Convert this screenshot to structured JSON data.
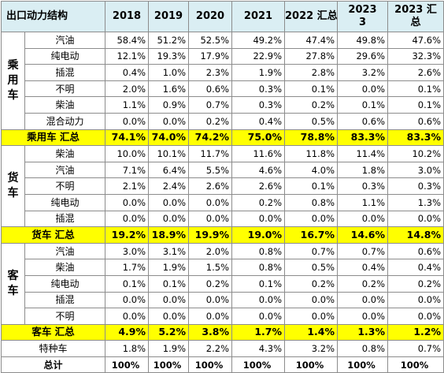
{
  "header": {
    "label": "出口动力结构",
    "years": [
      "2018",
      "2019",
      "2020",
      "2021",
      "2022 汇总",
      "2023\n3",
      "2023 汇\n总"
    ]
  },
  "groups": [
    {
      "name": "乘\n用\n车",
      "rows": [
        {
          "label": "汽油",
          "values": [
            "58.4%",
            "51.2%",
            "52.5%",
            "49.2%",
            "47.4%",
            "49.8%",
            "47.6%"
          ]
        },
        {
          "label": "纯电动",
          "values": [
            "12.1%",
            "19.3%",
            "17.9%",
            "22.9%",
            "27.8%",
            "29.6%",
            "32.3%"
          ]
        },
        {
          "label": "插混",
          "values": [
            "0.4%",
            "1.0%",
            "2.3%",
            "1.9%",
            "2.8%",
            "3.2%",
            "2.6%"
          ]
        },
        {
          "label": "不明",
          "values": [
            "2.0%",
            "1.6%",
            "0.6%",
            "0.3%",
            "0.1%",
            "0.0%",
            "0.1%"
          ]
        },
        {
          "label": "柴油",
          "values": [
            "1.1%",
            "0.9%",
            "0.7%",
            "0.3%",
            "0.2%",
            "0.1%",
            "0.1%"
          ]
        },
        {
          "label": "混合动力",
          "values": [
            "0.0%",
            "0.0%",
            "0.2%",
            "0.4%",
            "0.5%",
            "0.6%",
            "0.6%"
          ]
        }
      ],
      "subtotal": {
        "label": "乘用车 汇总",
        "values": [
          "74.1%",
          "74.0%",
          "74.2%",
          "75.0%",
          "78.8%",
          "83.3%",
          "83.3%"
        ]
      }
    },
    {
      "name": "货\n车",
      "rows": [
        {
          "label": "柴油",
          "values": [
            "10.0%",
            "10.1%",
            "11.7%",
            "11.6%",
            "11.8%",
            "11.4%",
            "10.2%"
          ]
        },
        {
          "label": "汽油",
          "values": [
            "7.1%",
            "6.4%",
            "5.5%",
            "4.6%",
            "4.0%",
            "1.8%",
            "3.0%"
          ]
        },
        {
          "label": "不明",
          "values": [
            "2.1%",
            "2.4%",
            "2.6%",
            "2.6%",
            "0.1%",
            "0.3%",
            "0.3%"
          ]
        },
        {
          "label": "纯电动",
          "values": [
            "0.0%",
            "0.0%",
            "0.0%",
            "0.2%",
            "0.8%",
            "1.1%",
            "1.3%"
          ]
        },
        {
          "label": "插混",
          "values": [
            "0.0%",
            "0.0%",
            "0.0%",
            "0.0%",
            "0.0%",
            "0.0%",
            "0.0%"
          ]
        }
      ],
      "subtotal": {
        "label": "货车 汇总",
        "values": [
          "19.2%",
          "18.9%",
          "19.9%",
          "19.0%",
          "16.7%",
          "14.6%",
          "14.8%"
        ]
      }
    },
    {
      "name": "客\n车",
      "rows": [
        {
          "label": "汽油",
          "values": [
            "3.0%",
            "3.1%",
            "2.0%",
            "0.8%",
            "0.7%",
            "0.7%",
            "0.6%"
          ]
        },
        {
          "label": "柴油",
          "values": [
            "1.7%",
            "1.9%",
            "1.5%",
            "0.8%",
            "0.5%",
            "0.4%",
            "0.4%"
          ]
        },
        {
          "label": "纯电动",
          "values": [
            "0.1%",
            "0.1%",
            "0.2%",
            "0.1%",
            "0.2%",
            "0.2%",
            "0.2%"
          ]
        },
        {
          "label": "插混",
          "values": [
            "0.0%",
            "0.0%",
            "0.0%",
            "0.0%",
            "0.0%",
            "0.0%",
            "0.0%"
          ]
        },
        {
          "label": "不明",
          "values": [
            "0.0%",
            "0.0%",
            "0.0%",
            "0.0%",
            "0.0%",
            "0.0%",
            "0.0%"
          ]
        }
      ],
      "subtotal": {
        "label": "客车 汇总",
        "values": [
          "4.9%",
          "5.2%",
          "3.8%",
          "1.7%",
          "1.4%",
          "1.3%",
          "1.2%"
        ]
      }
    }
  ],
  "special": {
    "label": "特种车",
    "values": [
      "1.8%",
      "1.9%",
      "2.2%",
      "4.3%",
      "3.2%",
      "0.8%",
      "0.7%"
    ]
  },
  "total": {
    "label": "总计",
    "values": [
      "100%",
      "100%",
      "100%",
      "100%",
      "100%",
      "100%",
      "100%"
    ]
  },
  "colors": {
    "header_bg": "#daeef3",
    "subtotal_bg": "#ffff00",
    "grid": "#8c8c8c"
  }
}
